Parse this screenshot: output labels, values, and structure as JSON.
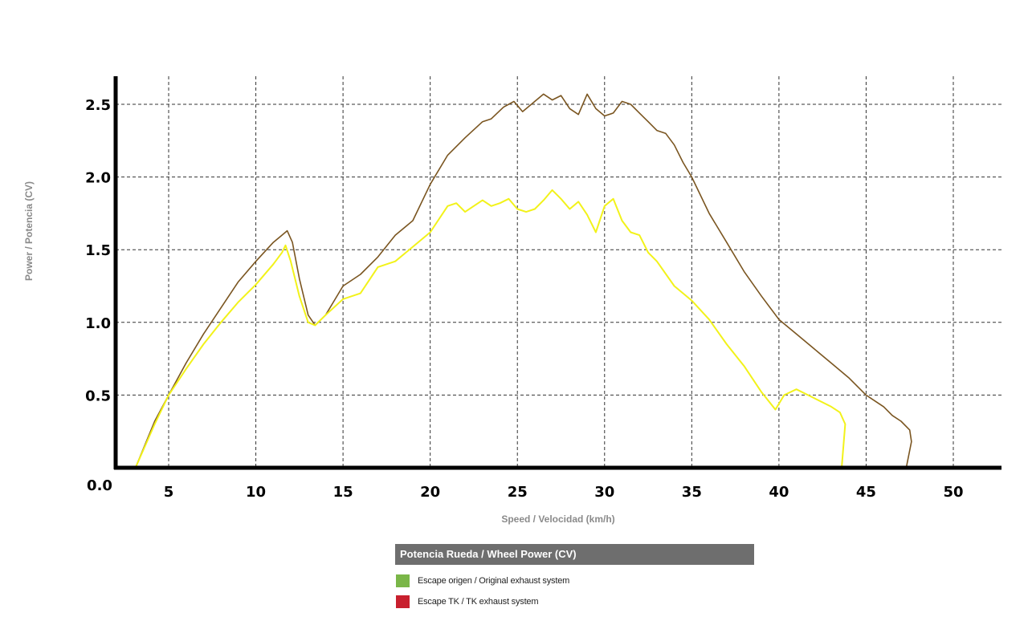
{
  "chart_data": {
    "type": "line",
    "xlabel": "Speed / Velocidad (km/h)",
    "ylabel": "Power / Potencia (CV)",
    "xlim": [
      1.5,
      53
    ],
    "ylim": [
      0,
      2.7
    ],
    "x_ticks": [
      5,
      10,
      15,
      20,
      25,
      30,
      35,
      40,
      45,
      50
    ],
    "x_tick_labels": [
      "5",
      "10",
      "15",
      "20",
      "25",
      "30",
      "35",
      "40",
      "45",
      "50"
    ],
    "y_ticks": [
      0.5,
      1.0,
      1.5,
      2.0,
      2.5
    ],
    "y_tick_labels": [
      "0.5",
      "1.0",
      "1.5",
      "2.0",
      "2.5"
    ],
    "origin_label": "0.0",
    "grid": true,
    "legend_title": "Potencia Rueda / Wheel Power (CV)",
    "series": [
      {
        "name": "Escape origen / Original exhaust system",
        "legend_color": "#7ab648",
        "line_color": "#7a5520",
        "x": [
          3.1,
          4.2,
          5.0,
          6.0,
          7.0,
          8.0,
          9.0,
          10.0,
          11.0,
          11.5,
          11.8,
          12.1,
          12.5,
          13.0,
          13.4,
          14.0,
          15.0,
          16.0,
          17.0,
          18.0,
          19.0,
          20.0,
          21.0,
          22.0,
          23.0,
          23.5,
          24.2,
          24.8,
          25.3,
          26.0,
          26.5,
          27.0,
          27.5,
          28.0,
          28.5,
          29.0,
          29.5,
          30.0,
          30.5,
          31.0,
          31.5,
          32.0,
          32.5,
          33.0,
          33.5,
          34.0,
          34.5,
          35.0,
          36.0,
          37.0,
          38.0,
          39.0,
          40.0,
          41.0,
          42.0,
          43.0,
          44.0,
          45.0,
          46.0,
          46.5,
          47.0,
          47.5,
          47.6,
          47.3
        ],
        "y": [
          0.0,
          0.32,
          0.5,
          0.72,
          0.92,
          1.1,
          1.28,
          1.42,
          1.55,
          1.6,
          1.63,
          1.55,
          1.3,
          1.05,
          0.98,
          1.05,
          1.25,
          1.33,
          1.45,
          1.6,
          1.7,
          1.95,
          2.15,
          2.27,
          2.38,
          2.4,
          2.48,
          2.52,
          2.45,
          2.52,
          2.57,
          2.53,
          2.56,
          2.47,
          2.43,
          2.57,
          2.47,
          2.42,
          2.44,
          2.52,
          2.5,
          2.44,
          2.38,
          2.32,
          2.3,
          2.22,
          2.1,
          2.0,
          1.75,
          1.55,
          1.35,
          1.18,
          1.02,
          0.92,
          0.82,
          0.72,
          0.62,
          0.5,
          0.42,
          0.36,
          0.32,
          0.26,
          0.18,
          0.0
        ]
      },
      {
        "name": "Escape TK  / TK exhaust  system",
        "legend_color": "#c8202e",
        "line_color": "#f2f21a",
        "x": [
          3.1,
          4.2,
          5.0,
          6.0,
          7.0,
          8.0,
          9.0,
          10.0,
          11.0,
          11.5,
          11.7,
          12.0,
          12.5,
          13.0,
          13.4,
          14.0,
          15.0,
          16.0,
          17.0,
          18.0,
          19.0,
          20.0,
          21.0,
          21.5,
          22.0,
          22.5,
          23.0,
          23.5,
          24.0,
          24.5,
          25.0,
          25.5,
          26.0,
          26.5,
          27.0,
          27.5,
          28.0,
          28.5,
          29.0,
          29.5,
          30.0,
          30.5,
          31.0,
          31.5,
          32.0,
          32.5,
          33.0,
          34.0,
          35.0,
          36.0,
          37.0,
          38.0,
          39.0,
          39.8,
          40.3,
          41.0,
          42.0,
          43.0,
          43.5,
          43.8,
          43.6
        ],
        "y": [
          0.0,
          0.3,
          0.5,
          0.68,
          0.85,
          1.0,
          1.14,
          1.26,
          1.4,
          1.48,
          1.53,
          1.42,
          1.18,
          1.0,
          0.98,
          1.05,
          1.16,
          1.2,
          1.38,
          1.42,
          1.52,
          1.62,
          1.8,
          1.82,
          1.76,
          1.8,
          1.84,
          1.8,
          1.82,
          1.85,
          1.78,
          1.76,
          1.78,
          1.84,
          1.91,
          1.85,
          1.78,
          1.83,
          1.74,
          1.62,
          1.8,
          1.85,
          1.7,
          1.62,
          1.6,
          1.48,
          1.42,
          1.25,
          1.15,
          1.02,
          0.85,
          0.7,
          0.52,
          0.4,
          0.5,
          0.54,
          0.48,
          0.42,
          0.38,
          0.3,
          0.0
        ]
      }
    ]
  }
}
